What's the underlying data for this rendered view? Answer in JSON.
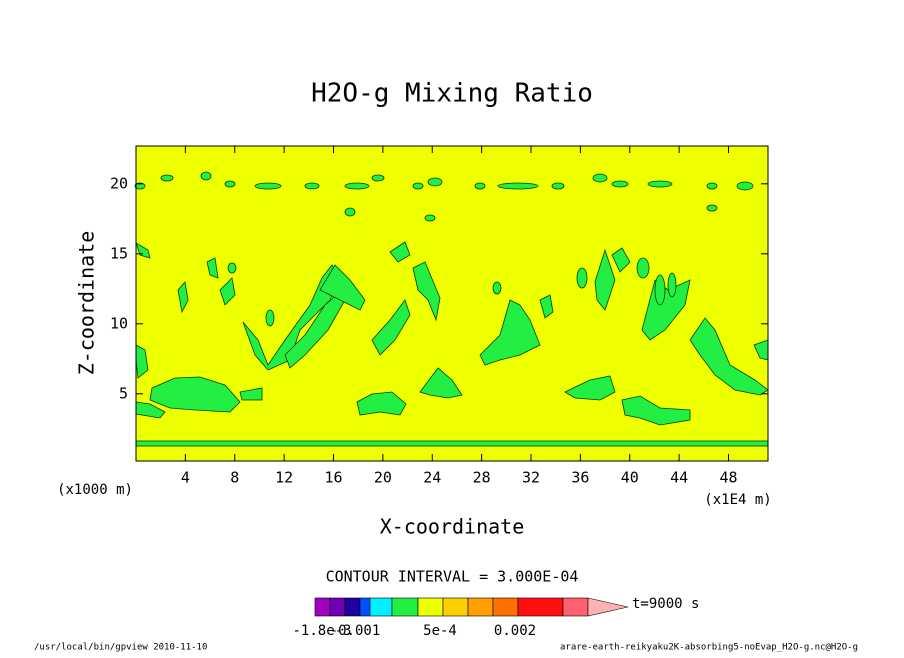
{
  "chart_data": {
    "type": "contour",
    "title": "H2O-g Mixing Ratio",
    "xlabel": "X-coordinate",
    "ylabel": "Z-coordinate",
    "x_unit": "(x1E4 m)",
    "y_unit": "(x1000 m)",
    "xlim": [
      0,
      51.2
    ],
    "ylim": [
      0.2,
      22.7
    ],
    "xticks": [
      4,
      8,
      12,
      16,
      20,
      24,
      28,
      32,
      36,
      40,
      44,
      48
    ],
    "yticks": [
      5,
      10,
      15,
      20
    ],
    "field_color": "#eeff00",
    "contour_fill_color": "#22ee44",
    "contour_interval": "CONTOUR INTERVAL = 3.000E-04",
    "colorbar": {
      "colors": [
        "#a000c0",
        "#7000b0",
        "#2000a0",
        "#0050ff",
        "#00f0ff",
        "#22ee44",
        "#eeff00",
        "#ffd000",
        "#ffa000",
        "#ff7000",
        "#ff1010",
        "#ff6070",
        "#ffb0b0"
      ],
      "labels": [
        "-1.8e-3",
        "-0.001",
        "5e-4",
        "0.002"
      ],
      "time": "t=9000 s"
    },
    "footer_left": "/usr/local/bin/gpview  2010-11-10",
    "footer_right": "arare-earth-reikyaku2K-absorbing5-noEvap_H2O-g.nc@H2O-g"
  }
}
